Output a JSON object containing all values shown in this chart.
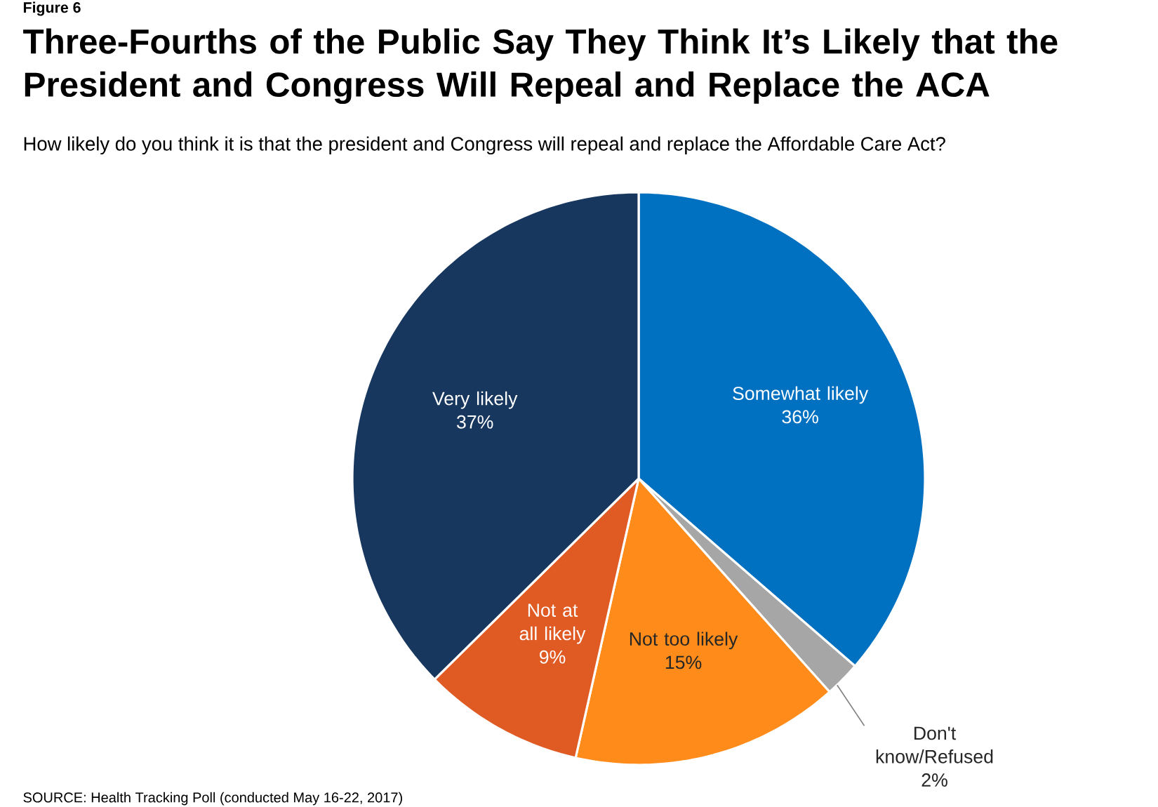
{
  "chart_data": {
    "type": "pie",
    "title": "Three-Fourths of the Public Say They Think It’s Likely that the President and Congress Will Repeal and Replace the ACA",
    "subtitle": "How likely do you think it is that the president and Congress will repeal and replace the Affordable Care Act?",
    "categories": [
      "Somewhat likely",
      "Don't know/Refused",
      "Not too likely",
      "Not at all likely",
      "Very likely"
    ],
    "values": [
      36,
      2,
      15,
      9,
      37
    ],
    "value_labels": [
      "36%",
      "2%",
      "15%",
      "9%",
      "37%"
    ],
    "colors": [
      "#0070c0",
      "#a6a6a6",
      "#ff8c1a",
      "#e05a24",
      "#17375e"
    ],
    "annotations": [
      "Figure 6",
      "SOURCE: Health Tracking Poll (conducted May 16-22, 2017)"
    ]
  }
}
